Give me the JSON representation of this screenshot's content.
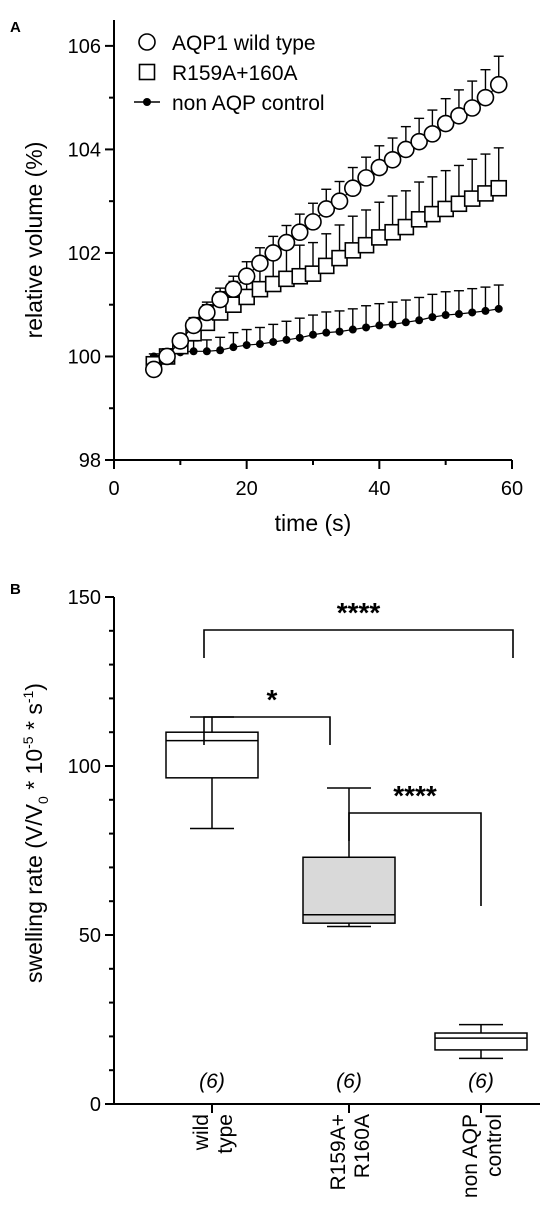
{
  "chart_data": [
    {
      "panel": "A",
      "type": "line",
      "xlabel": "time (s)",
      "ylabel": "relative volume (%)",
      "xlim": [
        0,
        60
      ],
      "ylim": [
        98,
        106.5
      ],
      "xticks": [
        "0",
        "20",
        "40",
        "60"
      ],
      "yticks": [
        "98",
        "100",
        "102",
        "104",
        "106"
      ],
      "legend_position": "top-left",
      "series": [
        {
          "name": "AQP1 wild type",
          "marker": "open-circle",
          "x": [
            6,
            8,
            10,
            12,
            14,
            16,
            18,
            20,
            22,
            24,
            26,
            28,
            30,
            32,
            34,
            36,
            38,
            40,
            42,
            44,
            46,
            48,
            50,
            52,
            54,
            56,
            58
          ],
          "y": [
            99.75,
            100.0,
            100.3,
            100.6,
            100.85,
            101.1,
            101.3,
            101.55,
            101.8,
            102.0,
            102.2,
            102.4,
            102.6,
            102.85,
            103.0,
            103.25,
            103.45,
            103.65,
            103.8,
            104.0,
            104.15,
            104.3,
            104.5,
            104.65,
            104.8,
            105.0,
            105.25
          ],
          "err": [
            0.05,
            0.1,
            0.12,
            0.15,
            0.2,
            0.22,
            0.25,
            0.28,
            0.3,
            0.32,
            0.33,
            0.35,
            0.36,
            0.38,
            0.38,
            0.4,
            0.4,
            0.42,
            0.42,
            0.44,
            0.45,
            0.46,
            0.48,
            0.5,
            0.52,
            0.54,
            0.55
          ]
        },
        {
          "name": "R159A+160A",
          "marker": "open-square",
          "x": [
            6,
            8,
            10,
            12,
            14,
            16,
            18,
            20,
            22,
            24,
            26,
            28,
            30,
            32,
            34,
            36,
            38,
            40,
            42,
            44,
            46,
            48,
            50,
            52,
            54,
            56,
            58
          ],
          "y": [
            99.85,
            100.0,
            100.2,
            100.45,
            100.65,
            100.85,
            101.0,
            101.15,
            101.3,
            101.4,
            101.5,
            101.55,
            101.6,
            101.75,
            101.9,
            102.05,
            102.15,
            102.3,
            102.4,
            102.5,
            102.65,
            102.75,
            102.85,
            102.95,
            103.05,
            103.15,
            103.25
          ],
          "err": [
            0.1,
            0.1,
            0.2,
            0.3,
            0.35,
            0.4,
            0.45,
            0.5,
            0.52,
            0.55,
            0.58,
            0.6,
            0.6,
            0.62,
            0.64,
            0.66,
            0.68,
            0.68,
            0.7,
            0.7,
            0.72,
            0.72,
            0.74,
            0.74,
            0.76,
            0.76,
            0.78
          ]
        },
        {
          "name": "non AQP control",
          "marker": "filled-circle",
          "x": [
            6,
            8,
            10,
            12,
            14,
            16,
            18,
            20,
            22,
            24,
            26,
            28,
            30,
            32,
            34,
            36,
            38,
            40,
            42,
            44,
            46,
            48,
            50,
            52,
            54,
            56,
            58
          ],
          "y": [
            100.0,
            100.05,
            100.08,
            100.1,
            100.1,
            100.12,
            100.18,
            100.22,
            100.24,
            100.28,
            100.32,
            100.36,
            100.42,
            100.46,
            100.48,
            100.52,
            100.56,
            100.6,
            100.62,
            100.66,
            100.7,
            100.76,
            100.8,
            100.82,
            100.85,
            100.88,
            100.92
          ],
          "err": [
            0.05,
            0.1,
            0.15,
            0.2,
            0.22,
            0.25,
            0.28,
            0.3,
            0.32,
            0.34,
            0.36,
            0.38,
            0.38,
            0.4,
            0.4,
            0.4,
            0.42,
            0.42,
            0.43,
            0.43,
            0.44,
            0.44,
            0.45,
            0.45,
            0.46,
            0.46,
            0.46
          ]
        }
      ]
    },
    {
      "panel": "B",
      "type": "box",
      "ylabel_base": "swelling rate (V/V",
      "ylabel_sub": "0",
      "ylabel_mid1": " * 10",
      "ylabel_exp1": "-5",
      "ylabel_mid2": " * s",
      "ylabel_exp2": "-1",
      "ylabel_end": ")",
      "ylim": [
        0,
        150
      ],
      "yticks": [
        "0",
        "50",
        "100",
        "150"
      ],
      "categories": [
        {
          "label_line1": "wild",
          "label_line2": "type",
          "n": "(6)",
          "fill": "#ffffff",
          "whisker_low": 81.5,
          "q1": 96.5,
          "median": 107.5,
          "q3": 110,
          "whisker_high": 114.5
        },
        {
          "label_line1": "R159A+",
          "label_line2": "R160A",
          "n": "(6)",
          "fill": "#d9d9d9",
          "whisker_low": 52.5,
          "q1": 53.5,
          "median": 56,
          "q3": 73,
          "whisker_high": 93.5
        },
        {
          "label_line1": "non AQP",
          "label_line2": "control",
          "n": "(6)",
          "fill": "#ffffff",
          "whisker_low": 13.5,
          "q1": 16,
          "median": 19.5,
          "q3": 21,
          "whisker_high": 23.5
        }
      ],
      "significance": [
        {
          "from": 0,
          "to": 2,
          "label": "****"
        },
        {
          "from": 0,
          "to": 1,
          "label": "*"
        },
        {
          "from": 1,
          "to": 2,
          "label": "****"
        }
      ]
    }
  ]
}
